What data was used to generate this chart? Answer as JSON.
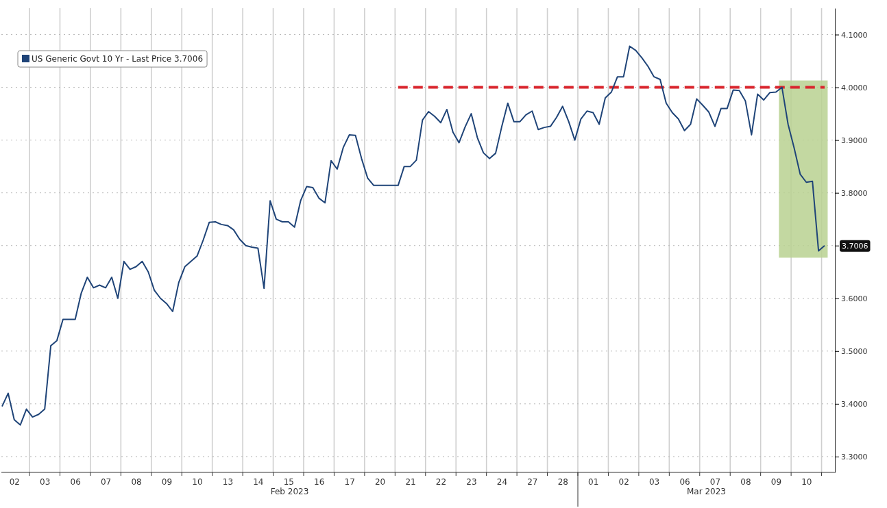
{
  "chart_data": {
    "type": "line",
    "ylim": [
      3.27,
      4.15
    ],
    "categories": [
      null,
      null,
      "02",
      null,
      null,
      null,
      null,
      "03",
      null,
      null,
      null,
      null,
      "06",
      null,
      null,
      null,
      null,
      "07",
      null,
      null,
      null,
      null,
      "08",
      null,
      null,
      null,
      null,
      "09",
      null,
      null,
      null,
      null,
      "10",
      null,
      null,
      null,
      null,
      "13",
      null,
      null,
      null,
      null,
      "14",
      null,
      null,
      null,
      null,
      "15",
      null,
      null,
      null,
      null,
      "16",
      null,
      null,
      null,
      null,
      "17",
      null,
      null,
      null,
      null,
      "20",
      null,
      null,
      null,
      null,
      "21",
      null,
      null,
      null,
      null,
      "22",
      null,
      null,
      null,
      null,
      "23",
      null,
      null,
      null,
      null,
      "24",
      null,
      null,
      null,
      null,
      "27",
      null,
      null,
      null,
      null,
      "28",
      null,
      null,
      null,
      null,
      "01",
      null,
      null,
      null,
      null,
      "02",
      null,
      null,
      null,
      null,
      "03",
      null,
      null,
      null,
      null,
      "06",
      null,
      null,
      null,
      null,
      "07",
      null,
      null,
      null,
      null,
      "08",
      null,
      null,
      null,
      null,
      "09",
      null,
      null,
      null,
      null,
      "10",
      null,
      null,
      null
    ],
    "yticks": [
      {
        "value": 3.3,
        "label": "3.3000"
      },
      {
        "value": 3.4,
        "label": "3.4000"
      },
      {
        "value": 3.5,
        "label": "3.5000"
      },
      {
        "value": 3.6,
        "label": "3.6000"
      },
      {
        "value": 3.7,
        "label": null
      },
      {
        "value": 3.8,
        "label": "3.8000"
      },
      {
        "value": 3.9,
        "label": "3.9000"
      },
      {
        "value": 4.0,
        "label": "4.0000"
      },
      {
        "value": 4.1,
        "label": "4.1000"
      }
    ],
    "grid": true,
    "legend": "top left",
    "annotations": [
      "Feb 2023",
      "Mar 2023",
      "3.7006"
    ],
    "series": [
      {
        "type": "line",
        "color": "#d9262e",
        "line_style": "dashed",
        "values": [
          null,
          null,
          null,
          null,
          null,
          null,
          null,
          null,
          null,
          null,
          null,
          null,
          null,
          null,
          null,
          null,
          null,
          null,
          null,
          null,
          null,
          null,
          null,
          null,
          null,
          null,
          null,
          null,
          null,
          null,
          null,
          null,
          null,
          null,
          null,
          null,
          null,
          null,
          null,
          null,
          null,
          null,
          null,
          null,
          null,
          null,
          null,
          null,
          null,
          null,
          null,
          null,
          null,
          null,
          null,
          null,
          null,
          null,
          null,
          null,
          null,
          null,
          null,
          null,
          null,
          4.0,
          4.0,
          4.0,
          4.0,
          4.0,
          4.0,
          4.0,
          4.0,
          4.0,
          4.0,
          4.0,
          4.0,
          4.0,
          4.0,
          4.0,
          4.0,
          4.0,
          4.0,
          4.0,
          4.0,
          4.0,
          4.0,
          4.0,
          4.0,
          4.0,
          4.0,
          4.0,
          4.0,
          4.0,
          4.0,
          4.0,
          4.0,
          4.0,
          4.0,
          4.0,
          4.0,
          4.0,
          4.0,
          4.0,
          4.0,
          4.0,
          4.0,
          4.0,
          4.0,
          4.0,
          4.0,
          4.0,
          4.0,
          4.0,
          4.0,
          4.0,
          4.0,
          4.0,
          4.0,
          4.0,
          4.0,
          4.0,
          4.0,
          4.0,
          4.0,
          4.0,
          4.0,
          4.0,
          4.0,
          4.0,
          4.0,
          4.0,
          4.0,
          4.0,
          4.0,
          4.0
        ]
      },
      {
        "name": "US Generic Govt 10 Yr - Last Price 3.7006",
        "color": "#1f4478",
        "values": [
          3.395,
          3.42,
          3.37,
          3.36,
          3.39,
          3.375,
          3.38,
          3.39,
          3.51,
          3.52,
          3.56,
          3.56,
          3.56,
          3.61,
          3.64,
          3.62,
          3.625,
          3.62,
          3.64,
          3.6,
          3.67,
          3.655,
          3.66,
          3.67,
          3.65,
          3.615,
          3.6,
          3.59,
          3.575,
          3.63,
          3.66,
          3.67,
          3.68,
          3.71,
          3.744,
          3.745,
          3.74,
          3.738,
          3.73,
          3.712,
          3.7,
          3.697,
          3.695,
          3.619,
          3.785,
          3.75,
          3.745,
          3.745,
          3.735,
          3.785,
          3.812,
          3.81,
          3.79,
          3.781,
          3.861,
          3.845,
          3.886,
          3.91,
          3.909,
          3.865,
          3.828,
          3.814,
          3.814,
          3.814,
          3.814,
          3.814,
          3.85,
          3.85,
          3.862,
          3.938,
          3.954,
          3.945,
          3.933,
          3.958,
          3.915,
          3.895,
          3.925,
          3.95,
          3.905,
          3.876,
          3.865,
          3.875,
          3.925,
          3.97,
          3.935,
          3.935,
          3.948,
          3.955,
          3.92,
          3.924,
          3.926,
          3.943,
          3.964,
          3.935,
          3.9,
          3.94,
          3.955,
          3.952,
          3.93,
          3.98,
          3.991,
          4.02,
          4.02,
          4.078,
          4.07,
          4.056,
          4.04,
          4.02,
          4.015,
          3.97,
          3.952,
          3.94,
          3.918,
          3.93,
          3.978,
          3.966,
          3.953,
          3.926,
          3.96,
          3.96,
          3.995,
          3.994,
          3.974,
          3.91,
          3.987,
          3.976,
          3.99,
          3.991,
          4.0,
          3.93,
          3.885,
          3.835,
          3.82,
          3.822,
          3.69,
          3.7
        ]
      }
    ]
  }
}
